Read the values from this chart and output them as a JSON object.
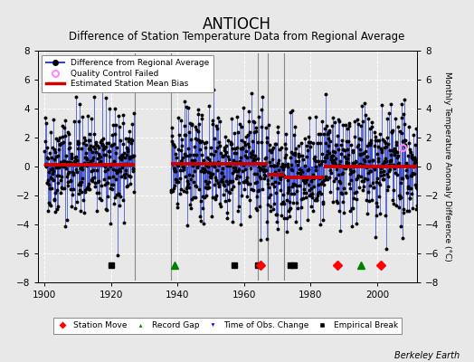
{
  "title": "ANTIOCH",
  "subtitle": "Difference of Station Temperature Data from Regional Average",
  "ylabel": "Monthly Temperature Anomaly Difference (°C)",
  "xlabel_note": "Berkeley Earth",
  "xlim": [
    1898,
    2012
  ],
  "ylim": [
    -8,
    8
  ],
  "yticks": [
    -8,
    -6,
    -4,
    -2,
    0,
    2,
    4,
    6,
    8
  ],
  "xticks": [
    1900,
    1920,
    1940,
    1960,
    1980,
    2000
  ],
  "bg_color": "#e8e8e8",
  "plot_bg_color": "#e8e8e8",
  "segments": [
    {
      "start": 1900,
      "end": 1927,
      "bias": 0.15
    },
    {
      "start": 1938,
      "end": 1964,
      "bias": 0.2
    },
    {
      "start": 1964,
      "end": 1967,
      "bias": 0.2
    },
    {
      "start": 1967,
      "end": 1972,
      "bias": -0.55
    },
    {
      "start": 1972,
      "end": 1984,
      "bias": -0.75
    },
    {
      "start": 1984,
      "end": 2012,
      "bias": 0.0
    }
  ],
  "bias_segments": [
    {
      "start": 1900,
      "end": 1927,
      "bias": 0.15
    },
    {
      "start": 1938,
      "end": 1967,
      "bias": 0.2
    },
    {
      "start": 1967,
      "end": 1972,
      "bias": -0.55
    },
    {
      "start": 1972,
      "end": 1984,
      "bias": -0.75
    },
    {
      "start": 1984,
      "end": 2012,
      "bias": 0.0
    }
  ],
  "gap_lines": [
    1927,
    1938,
    1964,
    1967,
    1972
  ],
  "station_moves": [
    1965,
    1988,
    2001
  ],
  "record_gaps": [
    1939,
    1995
  ],
  "time_of_obs_changes": [],
  "empirical_breaks": [
    1920,
    1957,
    1964,
    1974,
    1975
  ],
  "line_color": "#3344cc",
  "fill_color": "#aabbff",
  "dot_color": "#000000",
  "bias_color": "#cc0000",
  "qc_color": "#ff88ff",
  "qc_points": [
    [
      2007.5,
      1.3
    ]
  ],
  "title_fontsize": 12,
  "subtitle_fontsize": 8.5,
  "axis_fontsize": 7.5,
  "noise_std": 1.8,
  "amplitude": 0.5
}
